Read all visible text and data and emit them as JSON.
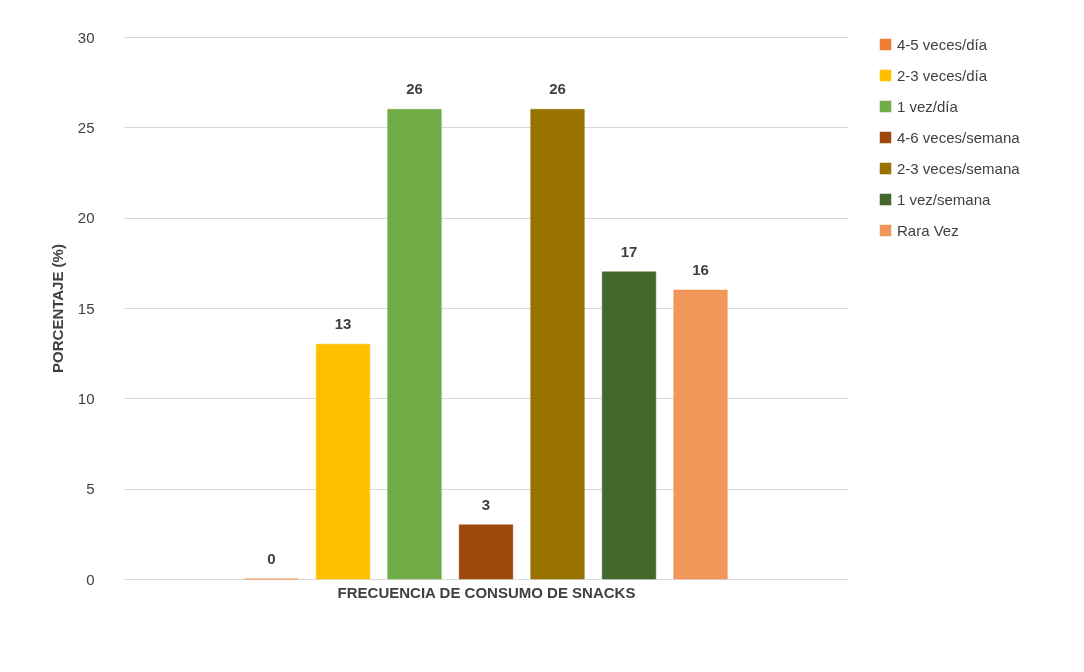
{
  "chart_data": {
    "type": "bar",
    "categories": [
      null
    ],
    "xlabel": "FRECUENCIA  DE CONSUMO DE SNACKS",
    "ylabel": "PORCENTAJE  (%)",
    "series": [
      {
        "name": "4-5 veces/día",
        "color": "#ed7d31",
        "values": [
          0
        ]
      },
      {
        "name": "2-3 veces/día",
        "color": "#ffc000",
        "values": [
          13
        ]
      },
      {
        "name": "1 vez/día",
        "color": "#70ad47",
        "values": [
          26
        ]
      },
      {
        "name": "4-6 veces/semana",
        "color": "#9e480e",
        "values": [
          3
        ]
      },
      {
        "name": "2-3 veces/semana",
        "color": "#997300",
        "values": [
          26
        ]
      },
      {
        "name": "1 vez/semana",
        "color": "#43682b",
        "values": [
          17
        ]
      },
      {
        "name": "Rara Vez",
        "color": "#f1975a",
        "values": [
          16
        ]
      }
    ],
    "ylim": [
      0,
      30
    ],
    "yticks": [
      0,
      5,
      10,
      15,
      20,
      25,
      30
    ],
    "grid": "y",
    "legend": "right",
    "data_labels": true
  }
}
